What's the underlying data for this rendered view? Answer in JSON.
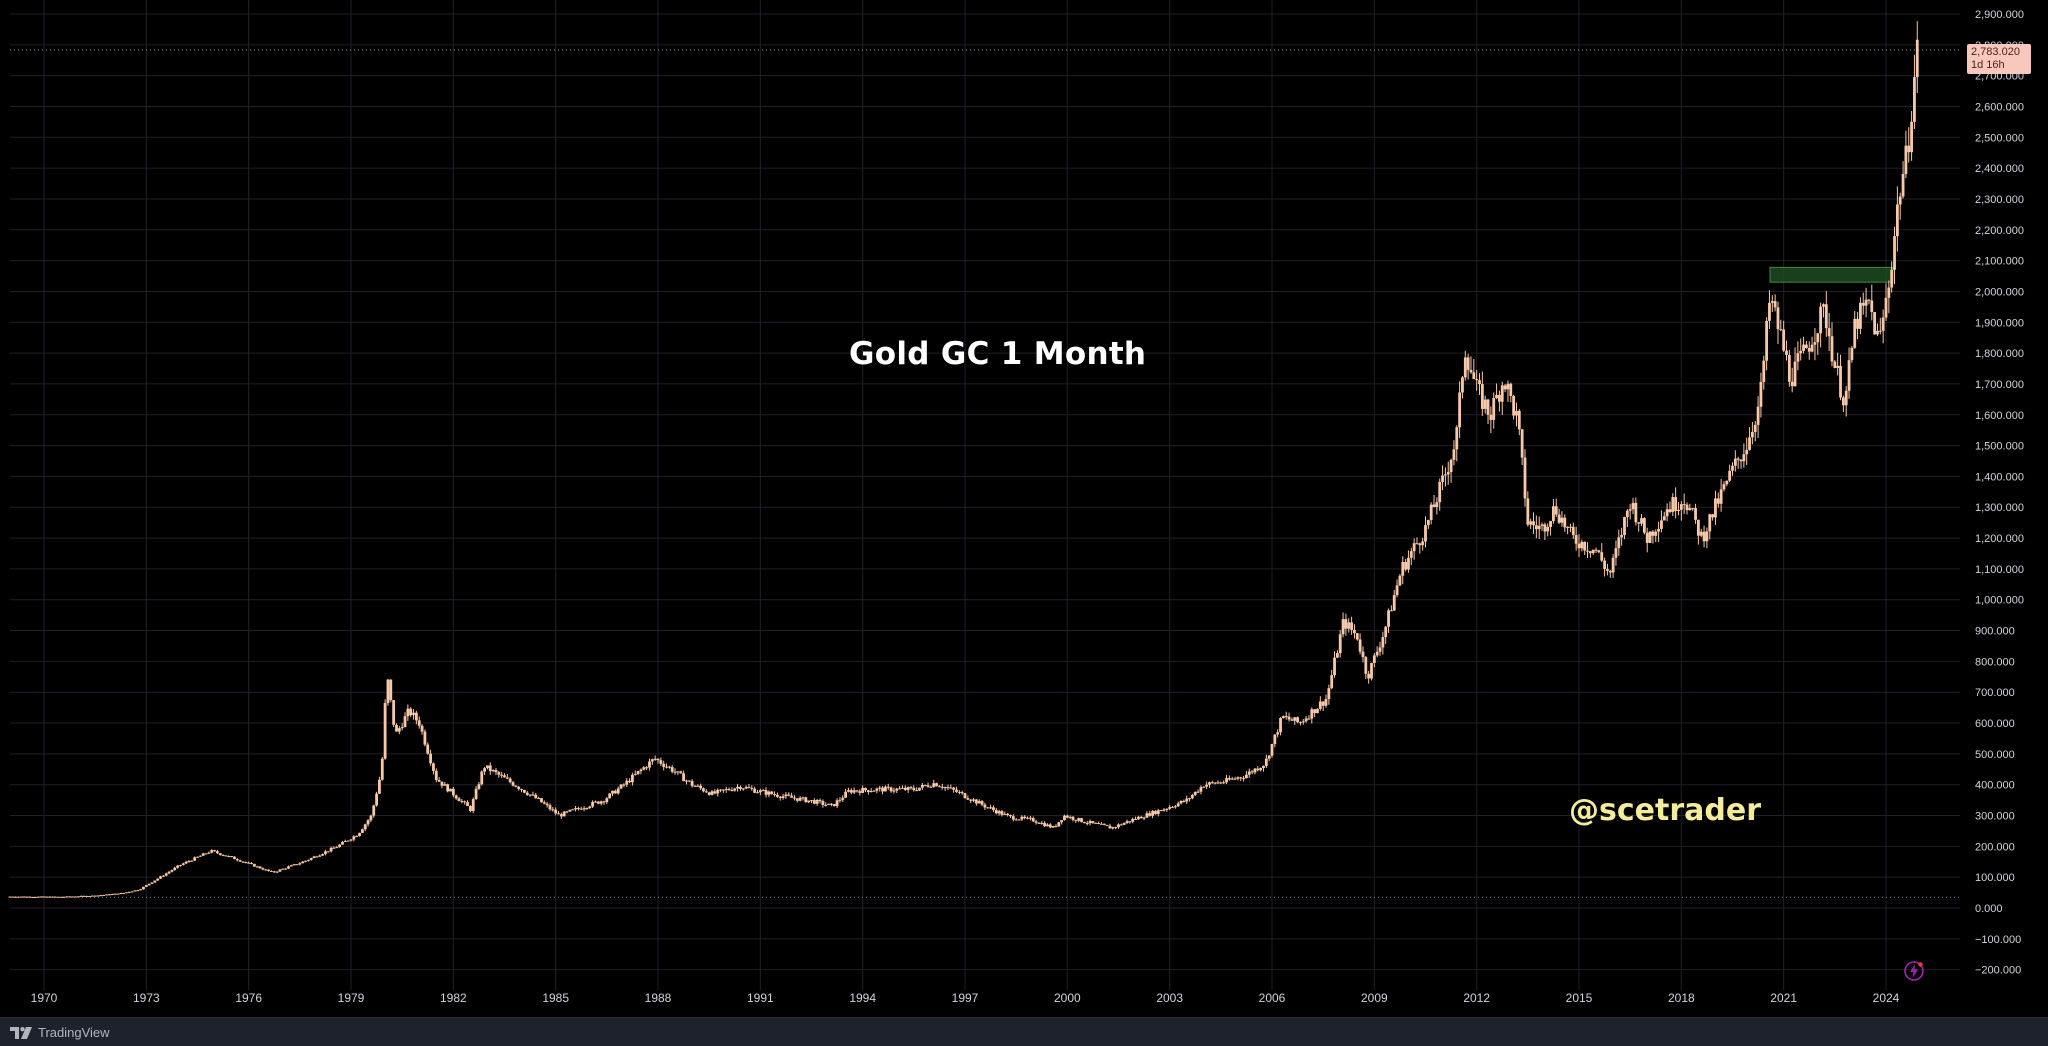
{
  "app": {
    "brand": "TradingView",
    "title": "Gold GC 1 Month",
    "watermark": "@scetrader"
  },
  "colors": {
    "background": "#000000",
    "grid": "#1f2127",
    "candle": "#f8c9a8",
    "axis_text": "#d1d4dc",
    "price_tag_bg": "#f8c8bd",
    "zone_fill": "#1e4a22",
    "zone_border": "#3e8a3e",
    "title": "#ffffff",
    "watermark": "#f3ec9c",
    "lightning": "#9c27b0"
  },
  "icons": {
    "brand": "tradingview-logo-icon",
    "alert": "lightning-icon"
  },
  "price_label": {
    "value": "2,783.020",
    "countdown": "1d 16h",
    "price": 2783.02
  },
  "reference_lines": {
    "current_price": 2783.02,
    "base_price": 35
  },
  "resistance_zone": {
    "from_year": 2020.6,
    "to_year": 2024.2,
    "low": 2030,
    "high": 2078
  },
  "chart_data": {
    "type": "candlestick",
    "title": "Gold GC 1 Month",
    "interval": "1 Month",
    "x_ticks": [
      "1970",
      "1973",
      "1976",
      "1979",
      "1982",
      "1985",
      "1988",
      "1991",
      "1994",
      "1997",
      "2000",
      "2003",
      "2006",
      "2009",
      "2012",
      "2015",
      "2018",
      "2021",
      "2024"
    ],
    "y_ticks": [
      "2,900.000",
      "2,800.000",
      "2,700.000",
      "2,600.000",
      "2,500.000",
      "2,400.000",
      "2,300.000",
      "2,200.000",
      "2,100.000",
      "2,000.000",
      "1,900.000",
      "1,800.000",
      "1,700.000",
      "1,600.000",
      "1,500.000",
      "1,400.000",
      "1,300.000",
      "1,200.000",
      "1,100.000",
      "1,000.000",
      "900.000",
      "800.000",
      "700.000",
      "600.000",
      "500.000",
      "400.000",
      "300.000",
      "200.000",
      "100.000",
      "0.000",
      "−100.000",
      "−200.000"
    ],
    "ylim": [
      -220,
      2960
    ],
    "xlim": [
      1969.0,
      2026.3
    ],
    "grid": true,
    "series": [
      {
        "points": [
          [
            1969.0,
            37
          ],
          [
            1970.5,
            36
          ],
          [
            1971.5,
            40
          ],
          [
            1972.3,
            48
          ],
          [
            1972.8,
            60
          ],
          [
            1973.4,
            100
          ],
          [
            1974.0,
            140
          ],
          [
            1974.5,
            165
          ],
          [
            1974.9,
            185
          ],
          [
            1975.6,
            160
          ],
          [
            1976.7,
            115
          ],
          [
            1977.6,
            150
          ],
          [
            1978.6,
            200
          ],
          [
            1979.2,
            240
          ],
          [
            1979.6,
            300
          ],
          [
            1979.9,
            450
          ],
          [
            1980.05,
            760
          ],
          [
            1980.3,
            560
          ],
          [
            1980.7,
            640
          ],
          [
            1981.0,
            600
          ],
          [
            1981.5,
            420
          ],
          [
            1982.0,
            370
          ],
          [
            1982.5,
            320
          ],
          [
            1982.9,
            460
          ],
          [
            1983.2,
            440
          ],
          [
            1983.8,
            400
          ],
          [
            1984.5,
            350
          ],
          [
            1985.1,
            300
          ],
          [
            1985.6,
            320
          ],
          [
            1986.4,
            350
          ],
          [
            1987.0,
            400
          ],
          [
            1987.9,
            485
          ],
          [
            1988.4,
            450
          ],
          [
            1989.0,
            400
          ],
          [
            1989.6,
            370
          ],
          [
            1990.4,
            395
          ],
          [
            1990.9,
            380
          ],
          [
            1991.8,
            360
          ],
          [
            1992.6,
            345
          ],
          [
            1993.1,
            330
          ],
          [
            1993.6,
            380
          ],
          [
            1994.5,
            385
          ],
          [
            1995.5,
            385
          ],
          [
            1996.1,
            405
          ],
          [
            1996.7,
            380
          ],
          [
            1997.6,
            330
          ],
          [
            1998.3,
            295
          ],
          [
            1999.0,
            285
          ],
          [
            1999.6,
            260
          ],
          [
            1999.9,
            300
          ],
          [
            2000.5,
            280
          ],
          [
            2001.3,
            260
          ],
          [
            2002.0,
            290
          ],
          [
            2002.8,
            320
          ],
          [
            2003.5,
            350
          ],
          [
            2004.0,
            400
          ],
          [
            2004.6,
            410
          ],
          [
            2005.2,
            430
          ],
          [
            2005.8,
            470
          ],
          [
            2006.3,
            620
          ],
          [
            2006.8,
            600
          ],
          [
            2007.6,
            680
          ],
          [
            2008.1,
            930
          ],
          [
            2008.5,
            880
          ],
          [
            2008.8,
            750
          ],
          [
            2009.3,
            900
          ],
          [
            2009.8,
            1100
          ],
          [
            2010.5,
            1230
          ],
          [
            2011.0,
            1380
          ],
          [
            2011.4,
            1520
          ],
          [
            2011.65,
            1820
          ],
          [
            2012.0,
            1680
          ],
          [
            2012.4,
            1600
          ],
          [
            2012.8,
            1720
          ],
          [
            2013.2,
            1580
          ],
          [
            2013.5,
            1250
          ],
          [
            2013.9,
            1230
          ],
          [
            2014.3,
            1300
          ],
          [
            2014.8,
            1200
          ],
          [
            2015.5,
            1160
          ],
          [
            2015.9,
            1080
          ],
          [
            2016.5,
            1320
          ],
          [
            2017.0,
            1200
          ],
          [
            2017.6,
            1300
          ],
          [
            2018.1,
            1330
          ],
          [
            2018.6,
            1200
          ],
          [
            2019.0,
            1300
          ],
          [
            2019.5,
            1420
          ],
          [
            2019.9,
            1500
          ],
          [
            2020.3,
            1640
          ],
          [
            2020.6,
            1980
          ],
          [
            2020.9,
            1860
          ],
          [
            2021.2,
            1720
          ],
          [
            2021.6,
            1800
          ],
          [
            2022.2,
            1940
          ],
          [
            2022.5,
            1760
          ],
          [
            2022.8,
            1640
          ],
          [
            2023.1,
            1900
          ],
          [
            2023.5,
            1960
          ],
          [
            2023.8,
            1830
          ],
          [
            2024.1,
            2040
          ],
          [
            2024.4,
            2330
          ],
          [
            2024.6,
            2430
          ],
          [
            2024.8,
            2660
          ],
          [
            2024.92,
            2783
          ]
        ]
      }
    ]
  }
}
